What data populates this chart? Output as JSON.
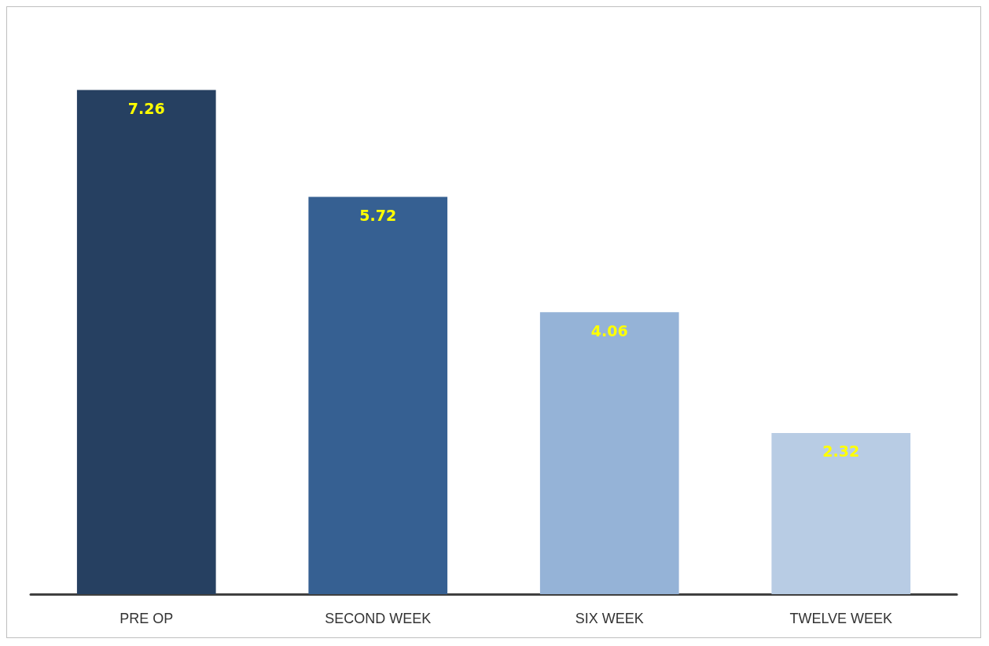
{
  "chart_data": {
    "type": "bar",
    "categories": [
      "PRE OP",
      "SECOND WEEK",
      "SIX WEEK",
      "TWELVE WEEK"
    ],
    "values": [
      7.26,
      5.72,
      4.06,
      2.32
    ],
    "colors": [
      "#264061",
      "#366092",
      "#95b3d7",
      "#b8cce4"
    ],
    "data_labels": true
  }
}
